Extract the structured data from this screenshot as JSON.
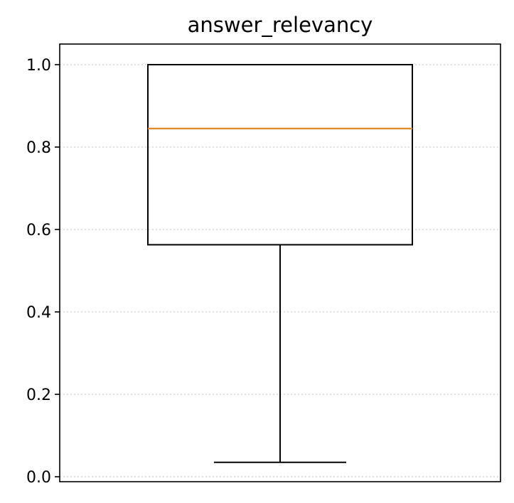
{
  "chart_data": {
    "type": "box",
    "title": "answer_relevancy",
    "xlabel": "",
    "ylabel": "",
    "ylim": [
      -0.012,
      1.05
    ],
    "yticks": [
      0.0,
      0.2,
      0.4,
      0.6,
      0.8,
      1.0
    ],
    "ytick_labels": [
      "0.0",
      "0.2",
      "0.4",
      "0.6",
      "0.8",
      "1.0"
    ],
    "grid": "y-dotted",
    "box": {
      "min": 0.035,
      "q1": 0.563,
      "median": 0.845,
      "q3": 1.0,
      "max": 1.0
    },
    "colors": {
      "median": "#e08a2a",
      "box": "#000000",
      "grid": "#d0d0d0"
    }
  }
}
